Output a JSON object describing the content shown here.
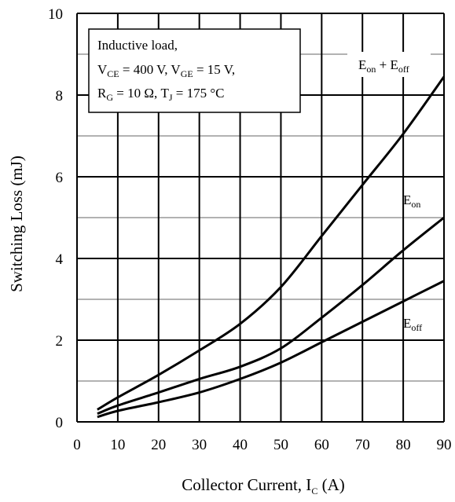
{
  "chart_data": {
    "type": "line",
    "title": "",
    "xlabel": "Collector Current, I",
    "xlabel_sub": "C",
    "xlabel_suffix": " (A)",
    "ylabel": "Switching Loss (mJ)",
    "xlim": [
      0,
      90
    ],
    "ylim": [
      0,
      10
    ],
    "x_ticks": [
      0,
      10,
      20,
      30,
      40,
      50,
      60,
      70,
      80,
      90
    ],
    "y_ticks": [
      0,
      2,
      4,
      6,
      8,
      10
    ],
    "grid": true,
    "major_grid_color": "#000000",
    "minor_grid_color": "#999999",
    "line_color": "#000000",
    "series": [
      {
        "name_main": "E",
        "name_sub1": "on",
        "name_mid": " + E",
        "name_sub2": "off",
        "x": [
          5,
          10,
          20,
          30,
          40,
          50,
          60,
          70,
          80,
          90
        ],
        "values": [
          0.3,
          0.6,
          1.15,
          1.75,
          2.4,
          3.3,
          4.55,
          5.8,
          7.05,
          8.45
        ]
      },
      {
        "name_main": "E",
        "name_sub1": "on",
        "x": [
          5,
          10,
          20,
          30,
          40,
          50,
          60,
          70,
          80,
          90
        ],
        "values": [
          0.2,
          0.4,
          0.72,
          1.05,
          1.35,
          1.8,
          2.55,
          3.35,
          4.2,
          5.0
        ]
      },
      {
        "name_main": "E",
        "name_sub1": "off",
        "x": [
          5,
          10,
          20,
          30,
          40,
          50,
          60,
          70,
          80,
          90
        ],
        "values": [
          0.12,
          0.27,
          0.48,
          0.72,
          1.05,
          1.45,
          1.95,
          2.45,
          2.95,
          3.45
        ]
      }
    ],
    "annotation": {
      "line1": "Inductive load,",
      "line2_a": "V",
      "line2_a_sub": "CE",
      "line2_b": " = 400 V, V",
      "line2_b_sub": "GE",
      "line2_c": " = 15 V,",
      "line3_a": "R",
      "line3_a_sub": "G",
      "line3_b": " = 10 Ω, T",
      "line3_b_sub": "J",
      "line3_c": " = 175 °C"
    }
  }
}
